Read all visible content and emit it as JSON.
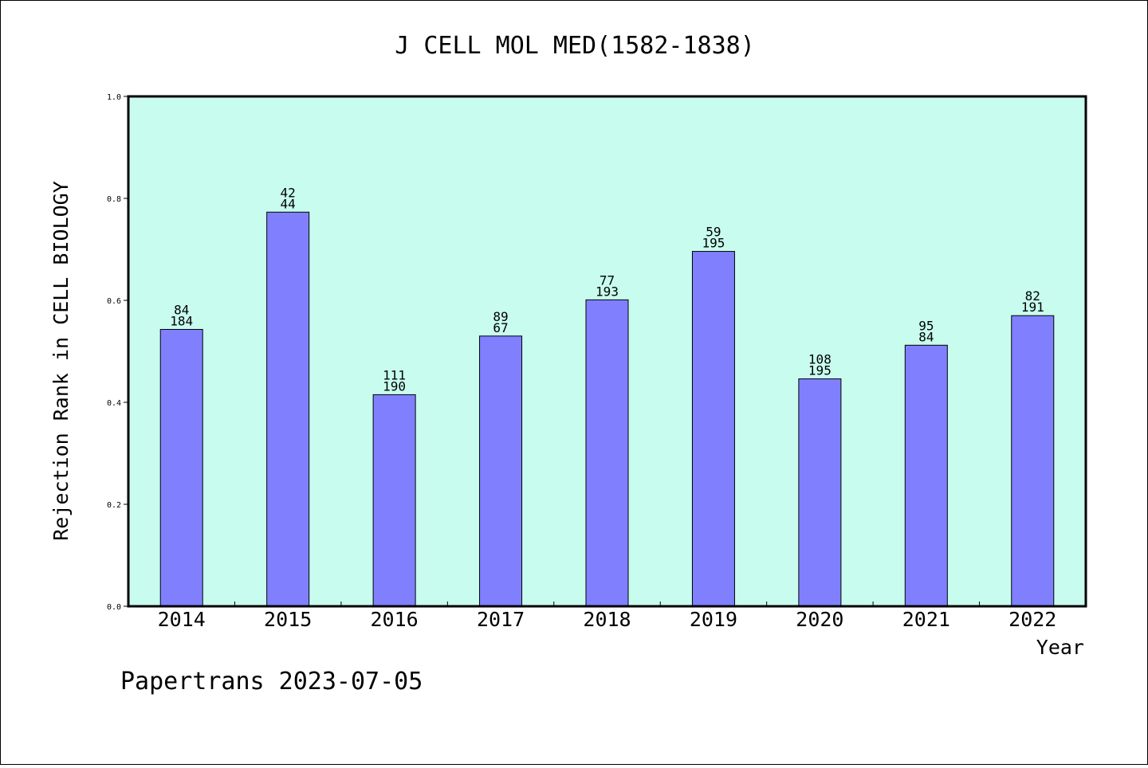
{
  "chart_data": {
    "type": "bar",
    "title": "J CELL MOL MED(1582-1838)",
    "xlabel": "Year",
    "ylabel": "Rejection Rank in CELL BIOLOGY",
    "ylim": [
      0,
      1.0
    ],
    "yticks": [
      "0.0",
      "0.2",
      "0.4",
      "0.6",
      "0.8",
      "1.0"
    ],
    "categories": [
      "2014",
      "2015",
      "2016",
      "2017",
      "2018",
      "2019",
      "2020",
      "2021",
      "2022"
    ],
    "values": [
      0.543,
      0.773,
      0.415,
      0.53,
      0.601,
      0.696,
      0.446,
      0.512,
      0.57
    ],
    "labels_top": [
      "84",
      "42",
      "111",
      "89",
      "77",
      "59",
      "108",
      "95",
      "82"
    ],
    "labels_bottom": [
      "184",
      "44",
      "190",
      "67",
      "193",
      "195",
      "195",
      "84",
      "191"
    ],
    "grid": false,
    "colors": {
      "plot_background": "#c8fcee",
      "bar_fill": "#8080ff",
      "bar_stroke": "#000000"
    }
  },
  "footer": {
    "text": "Papertrans 2023-07-05"
  }
}
